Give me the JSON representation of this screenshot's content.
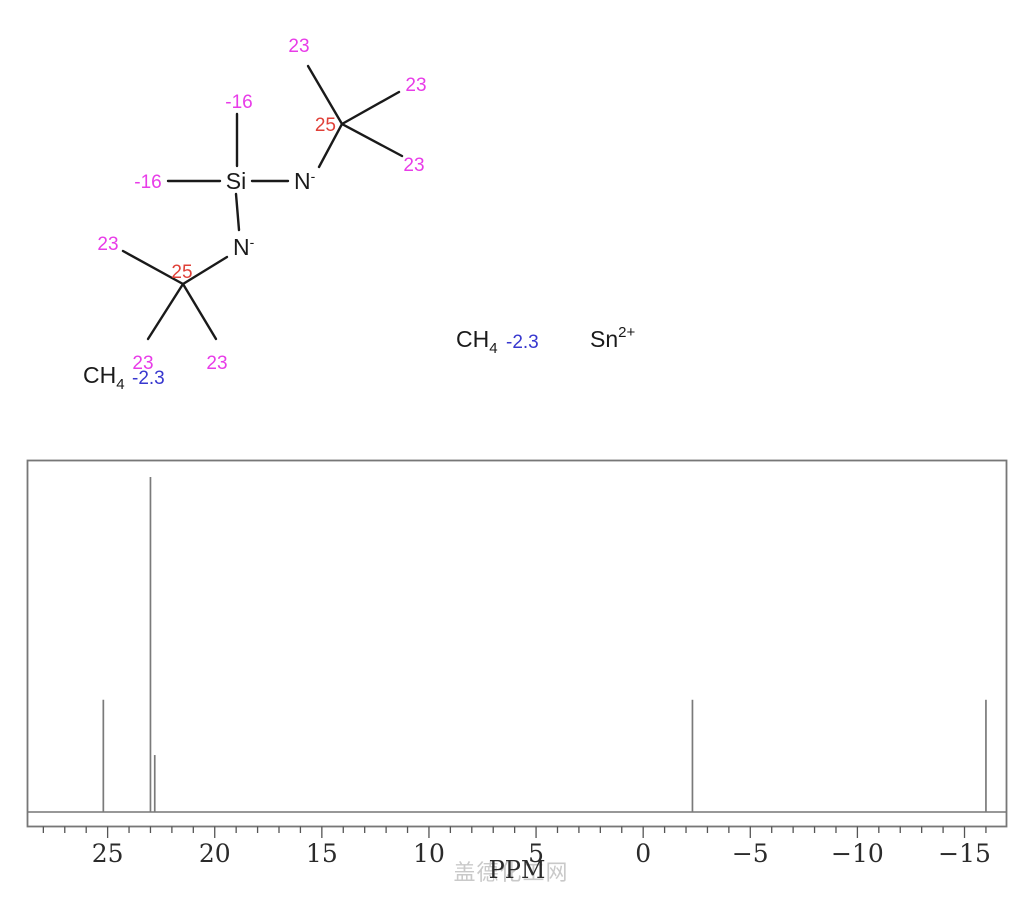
{
  "structure": {
    "atom_si": "Si",
    "atom_n": "N",
    "charge_minus": "-",
    "ch": "CH",
    "ch_sub": "4",
    "sn": "Sn",
    "sn_sup": "2+",
    "shift_23": "23",
    "shift_25": "25",
    "shift_m16": "-16",
    "shift_m2_3": "-2.3",
    "colors": {
      "methyl_shift": "#e83ce8",
      "quaternary_shift": "#e04038",
      "blue_shift": "#3838cf",
      "bond": "#1a1a1a"
    }
  },
  "chart_data": {
    "type": "line",
    "subtype": "nmr-stick-spectrum",
    "xlabel": "PPM",
    "xlim": [
      28.74,
      -16.96
    ],
    "x_axis_reversed": true,
    "grid": false,
    "minor_tick_step": 1,
    "minor_tick_range": [
      28,
      -16
    ],
    "xticks": [
      {
        "value": 25,
        "label": "25"
      },
      {
        "value": 20,
        "label": "20"
      },
      {
        "value": 15,
        "label": "15"
      },
      {
        "value": 10,
        "label": "10"
      },
      {
        "value": 5,
        "label": "5"
      },
      {
        "value": 0,
        "label": "0"
      },
      {
        "value": -5,
        "label": "−5"
      },
      {
        "value": -10,
        "label": "−10"
      },
      {
        "value": -15,
        "label": "−15"
      }
    ],
    "peaks": [
      {
        "ppm": 25.2,
        "rel_height": 0.335
      },
      {
        "ppm": 23.0,
        "rel_height": 1.0
      },
      {
        "ppm": 22.8,
        "rel_height": 0.17
      },
      {
        "ppm": -2.3,
        "rel_height": 0.335
      },
      {
        "ppm": -16.0,
        "rel_height": 0.335
      }
    ],
    "peak_color": "#7a7a7a",
    "frame_color": "#777777",
    "watermark": "盖德化工网"
  }
}
